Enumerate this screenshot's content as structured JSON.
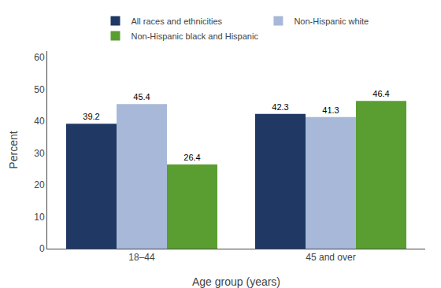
{
  "chart_data": {
    "type": "bar",
    "categories": [
      "18–44",
      "45 and over"
    ],
    "series": [
      {
        "name": "All races and ethnicities",
        "color": "#1f3864",
        "values": [
          39.2,
          42.3
        ]
      },
      {
        "name": "Non-Hispanic white",
        "color": "#a8b8d8",
        "values": [
          45.4,
          41.3
        ]
      },
      {
        "name": "Non-Hispanic black and Hispanic",
        "color": "#5a9e32",
        "values": [
          26.4,
          46.4
        ]
      }
    ],
    "xlabel": "Age group (years)",
    "ylabel": "Percent",
    "ylim": [
      0,
      62
    ],
    "yticks": [
      0,
      10,
      20,
      30,
      40,
      50,
      60
    ],
    "grid": false,
    "legend": "top",
    "data_labels": true
  }
}
